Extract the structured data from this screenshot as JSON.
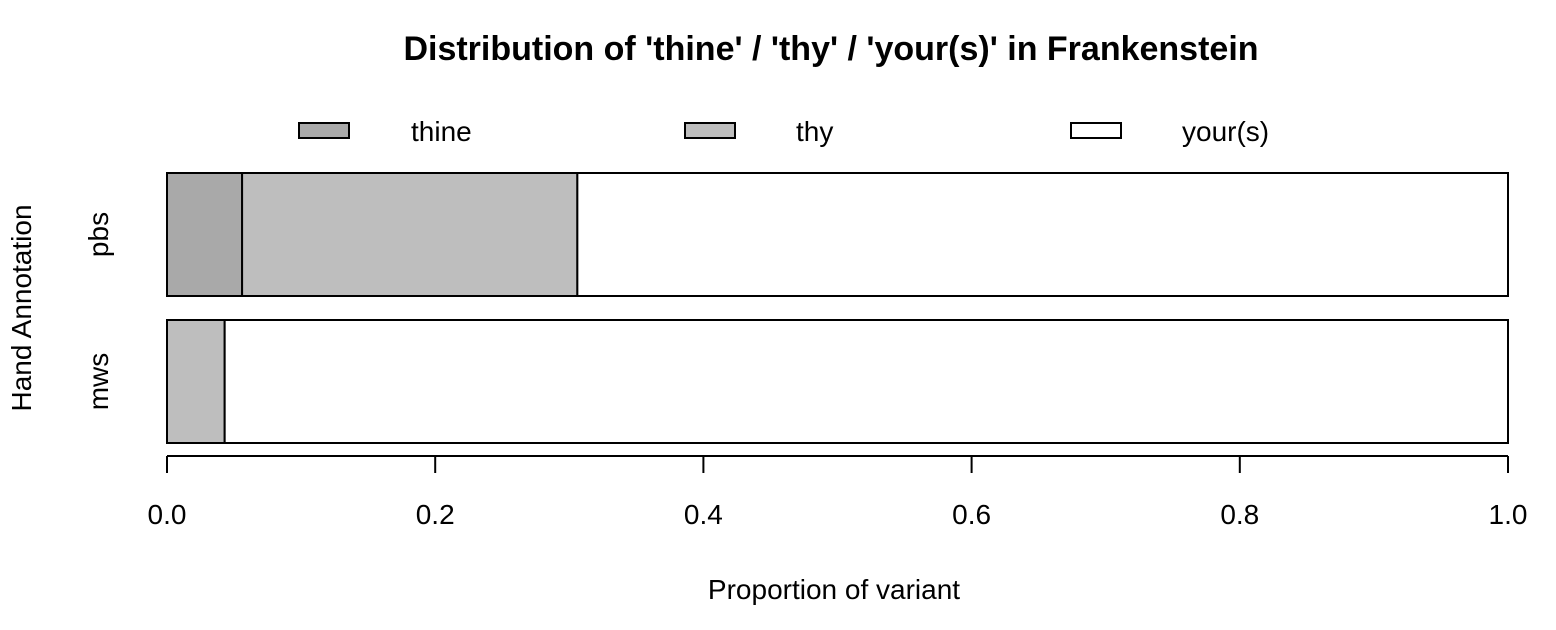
{
  "chart_data": {
    "type": "bar",
    "orientation": "horizontal",
    "stacked": true,
    "title": "Distribution of 'thine' / 'thy' / 'your(s)' in Frankenstein",
    "xlabel": "Proportion of variant",
    "ylabel": "Hand Annotation",
    "categories": [
      "pbs",
      "mws"
    ],
    "series": [
      {
        "name": "thine",
        "color": "#a9a9a9",
        "values": [
          0.056,
          0.0
        ]
      },
      {
        "name": "thy",
        "color": "#bebebe",
        "values": [
          0.25,
          0.043
        ]
      },
      {
        "name": "your(s)",
        "color": "#ffffff",
        "values": [
          0.694,
          0.957
        ]
      }
    ],
    "xlim": [
      0,
      1
    ],
    "xticks": [
      "0.0",
      "0.2",
      "0.4",
      "0.6",
      "0.8",
      "1.0"
    ],
    "legend_position": "top",
    "grid": false
  }
}
